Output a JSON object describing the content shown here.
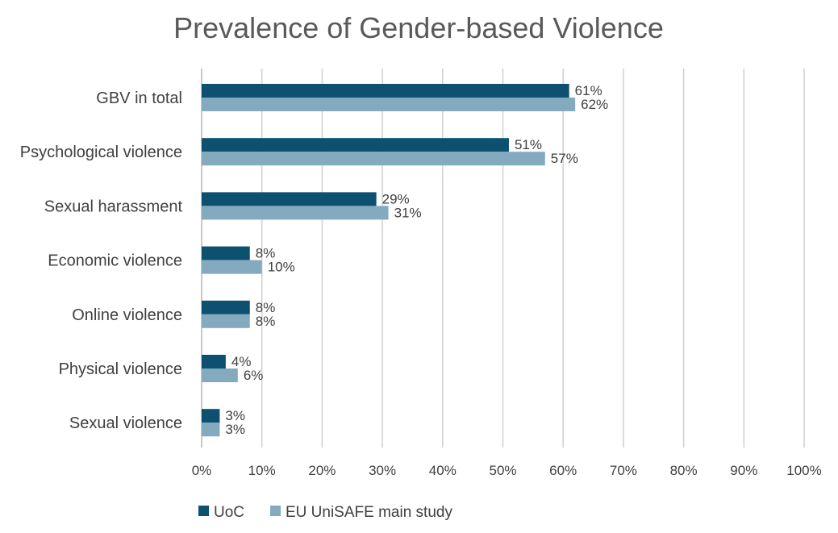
{
  "chart_data": {
    "type": "bar",
    "orientation": "horizontal",
    "title": "Prevalence of Gender-based Violence",
    "xlabel": "",
    "ylabel": "",
    "categories": [
      "GBV in total",
      "Psychological violence",
      "Sexual harassment",
      "Economic violence",
      "Online violence",
      "Physical violence",
      "Sexual violence"
    ],
    "series": [
      {
        "name": "UoC",
        "values": [
          61,
          51,
          29,
          8,
          8,
          4,
          3
        ],
        "labels": [
          "61%",
          "51%",
          "29%",
          "8%",
          "8%",
          "4%",
          "3%"
        ],
        "color": "#0d5070"
      },
      {
        "name": "EU UniSAFE main study",
        "values": [
          62,
          57,
          31,
          10,
          8,
          6,
          3
        ],
        "labels": [
          "62%",
          "57%",
          "31%",
          "10%",
          "8%",
          "6%",
          "3%"
        ],
        "color": "#84aabf"
      }
    ],
    "xlim": [
      0,
      100
    ],
    "xticks": [
      "0%",
      "10%",
      "20%",
      "30%",
      "40%",
      "50%",
      "60%",
      "70%",
      "80%",
      "90%",
      "100%"
    ],
    "grid": "vertical",
    "legend_position": "bottom-left"
  }
}
